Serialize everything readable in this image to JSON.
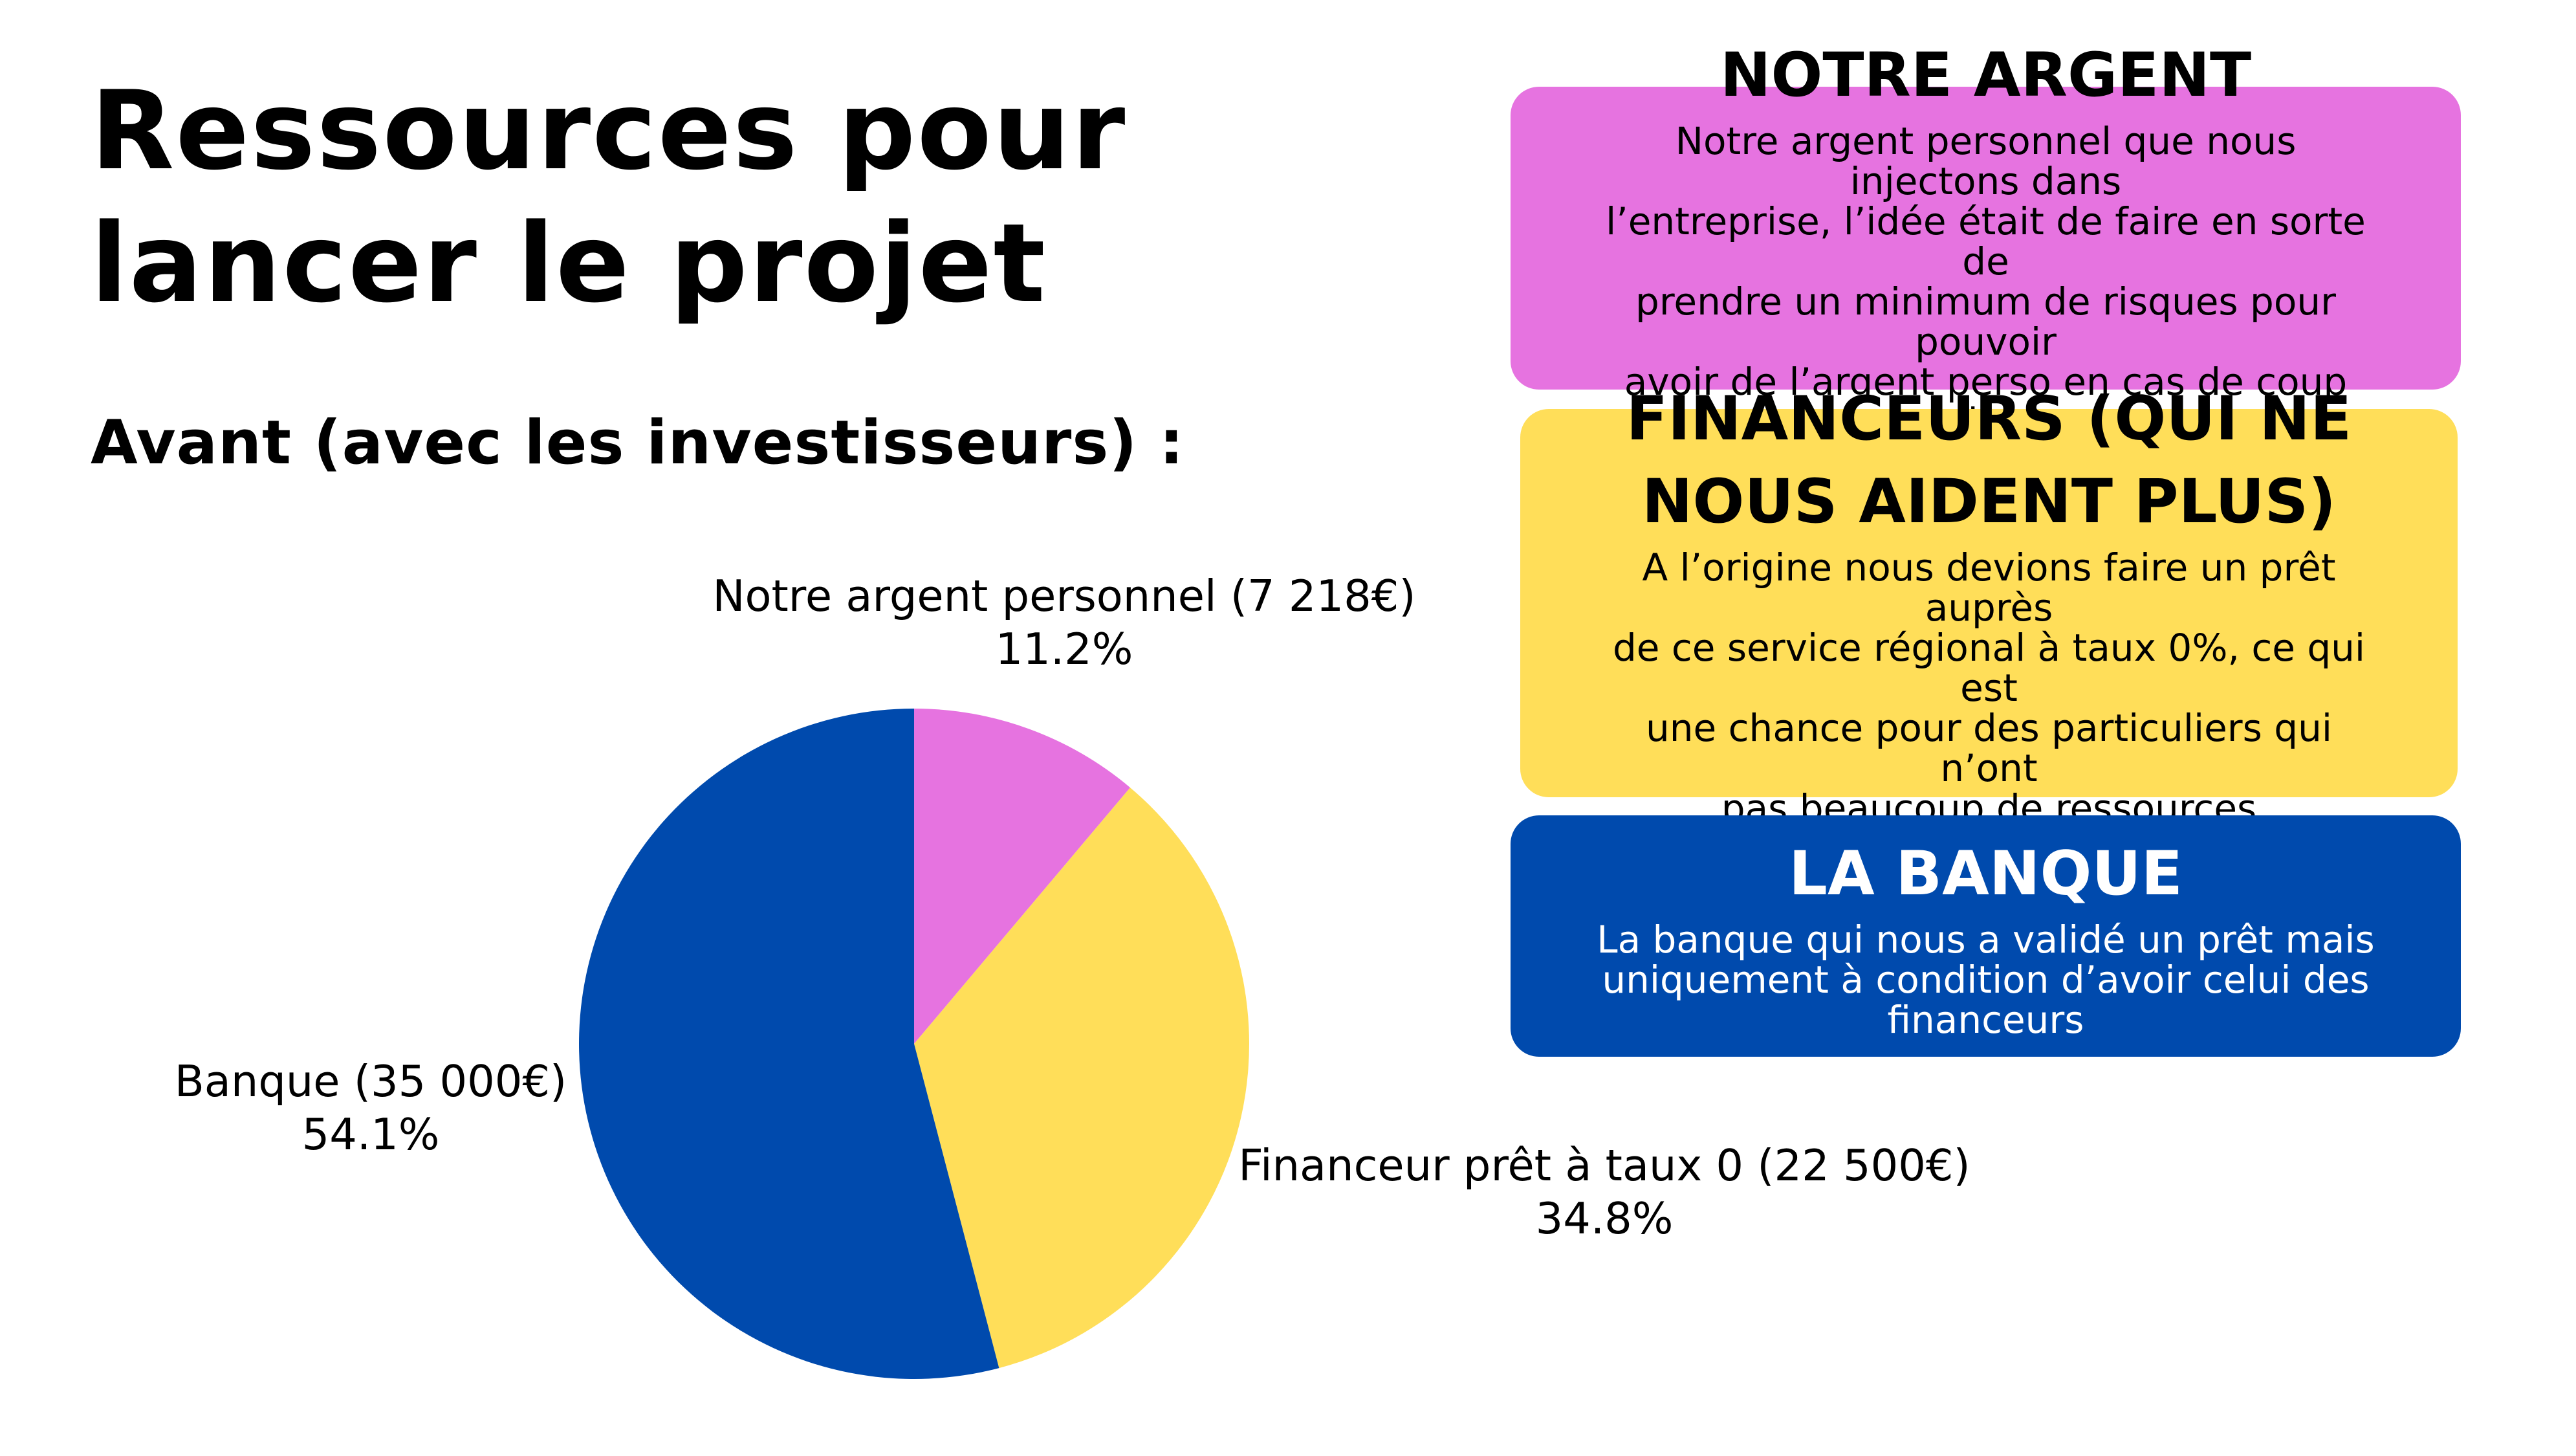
{
  "page": {
    "title_line1": "Ressources pour",
    "title_line2": "lancer le projet",
    "subtitle": "Avant (avec les investisseurs) :"
  },
  "colors": {
    "pink": "#E673E0",
    "yellow": "#FFDE59",
    "blue": "#004AAD"
  },
  "chart_data": {
    "type": "pie",
    "title": "",
    "slices": [
      {
        "label": "Notre argent personnel (7 218€)",
        "value": 7218,
        "percent_label": "11.2%",
        "color": "#E673E0"
      },
      {
        "label": "Financeur prêt à taux 0 (22 500€)",
        "value": 22500,
        "percent_label": "34.8%",
        "color": "#FFDE59"
      },
      {
        "label": "Banque (35 000€)",
        "value": 35000,
        "percent_label": "54.1%",
        "color": "#004AAD"
      }
    ]
  },
  "cards": [
    {
      "title": "NOTRE ARGENT",
      "body": [
        "Notre argent personnel que nous injectons dans",
        "l’entreprise, l’idée était de faire en sorte de",
        "prendre un minimum de risques pour pouvoir",
        "avoir de l’argent perso en cas de coup dur"
      ],
      "color": "#E673E0"
    },
    {
      "title": [
        "FINANCEURS (QUI NE",
        "NOUS AIDENT PLUS)"
      ],
      "body": [
        "A l’origine nous devions faire un prêt auprès",
        "de ce service régional à taux 0%, ce qui est",
        "une chance pour des particuliers qui n’ont",
        "pas beaucoup de ressources"
      ],
      "color": "#FFDE59"
    },
    {
      "title": "LA BANQUE",
      "body": [
        "La banque qui nous a validé un prêt mais",
        "uniquement à condition d’avoir celui des",
        "financeurs"
      ],
      "color": "#004AAD"
    }
  ]
}
